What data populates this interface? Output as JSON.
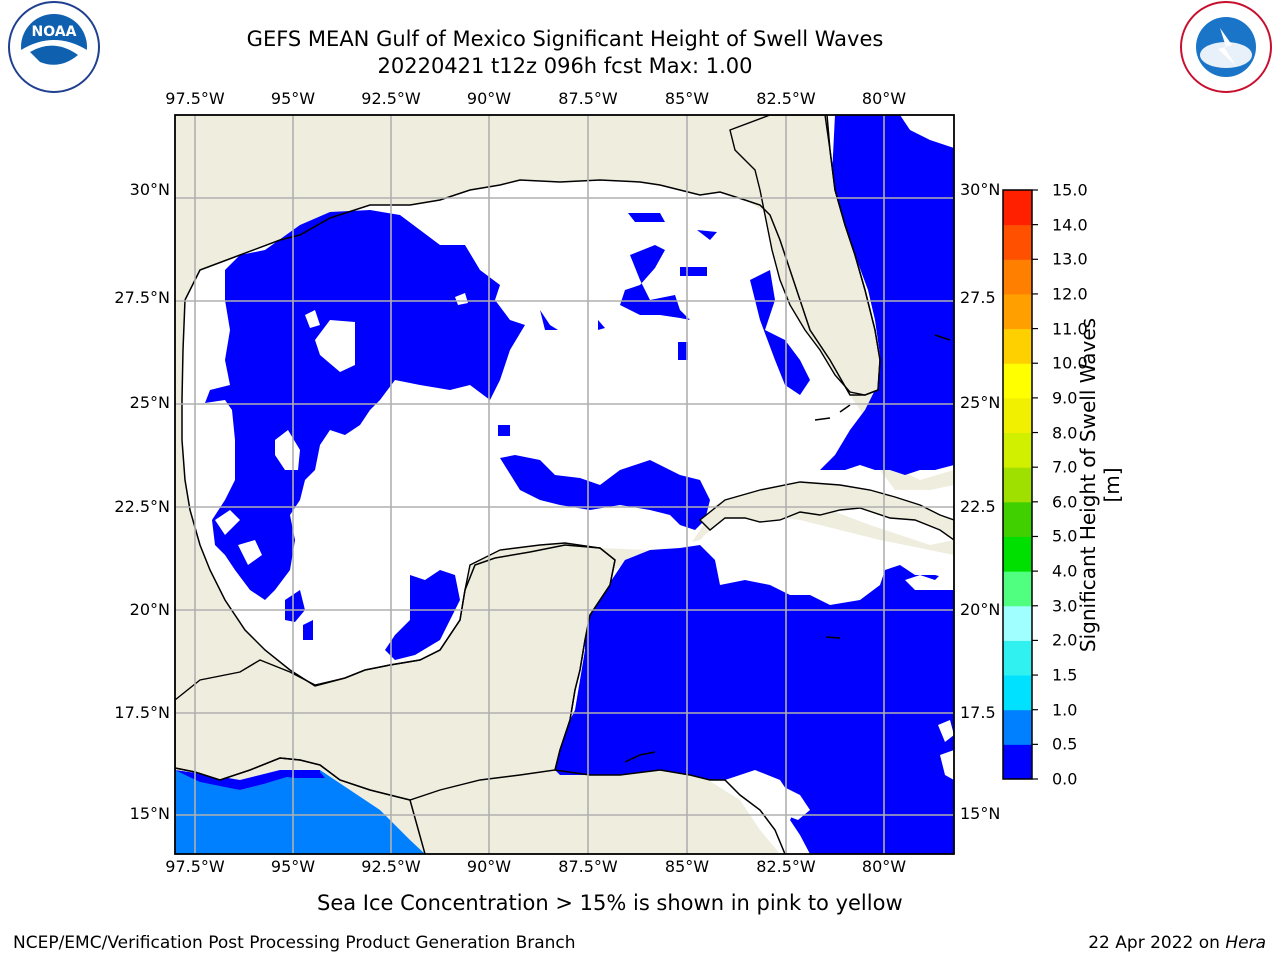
{
  "title": {
    "line1": "GEFS MEAN Gulf of Mexico Significant Height of Swell Waves",
    "line2": "20220421 t12z 096h fcst   Max: 1.00"
  },
  "map": {
    "lon_labels": [
      "97.5°W",
      "95°W",
      "92.5°W",
      "90°W",
      "87.5°W",
      "85°W",
      "82.5°W",
      "80°W"
    ],
    "lat_labels": [
      "30°N",
      "27.5°N",
      "25°N",
      "22.5°N",
      "20°N",
      "17.5°N",
      "15°N"
    ],
    "right_lat_labels": [
      "30°N",
      "27.5",
      "25°N",
      "22.5",
      "20°N",
      "17.5",
      "15°N"
    ],
    "colors": {
      "land": "#efedde",
      "ocean_low": "#0000ff",
      "ocean_mid": "#0080ff",
      "no_data": "#ffffff",
      "grid": "#b0b0b0",
      "coast": "#000000"
    }
  },
  "colorbar": {
    "label": "Significant Height of Swell Waves [m]",
    "ticks": [
      "0.0",
      "0.5",
      "1.0",
      "1.5",
      "2.0",
      "3.0",
      "4.0",
      "5.0",
      "6.0",
      "7.0",
      "8.0",
      "9.0",
      "10.0",
      "11.0",
      "12.0",
      "13.0",
      "14.0",
      "15.0"
    ],
    "colors": [
      "#0000ff",
      "#0080ff",
      "#00e0ff",
      "#30f0f0",
      "#a0ffff",
      "#50ff80",
      "#00e000",
      "#40d000",
      "#a0e000",
      "#d0f000",
      "#f0f000",
      "#ffff00",
      "#ffd000",
      "#ffa000",
      "#ff8000",
      "#ff5000",
      "#ff2000",
      "#ff0000"
    ]
  },
  "logos": {
    "noaa_text": "NOAA",
    "noaa_ring": "NATIONAL OCEANIC AND ATMOSPHERIC ADMINISTRATION · U.S. DEPARTMENT OF COMMERCE",
    "nws_ring": "NATIONAL WEATHER SERVICE"
  },
  "footnote": "Sea Ice Concentration > 15% is shown in pink to yellow",
  "footer": {
    "left": "NCEP/EMC/Verification Post Processing Product Generation Branch",
    "right_prefix": "22 Apr 2022 on ",
    "right_host": "Hera"
  }
}
